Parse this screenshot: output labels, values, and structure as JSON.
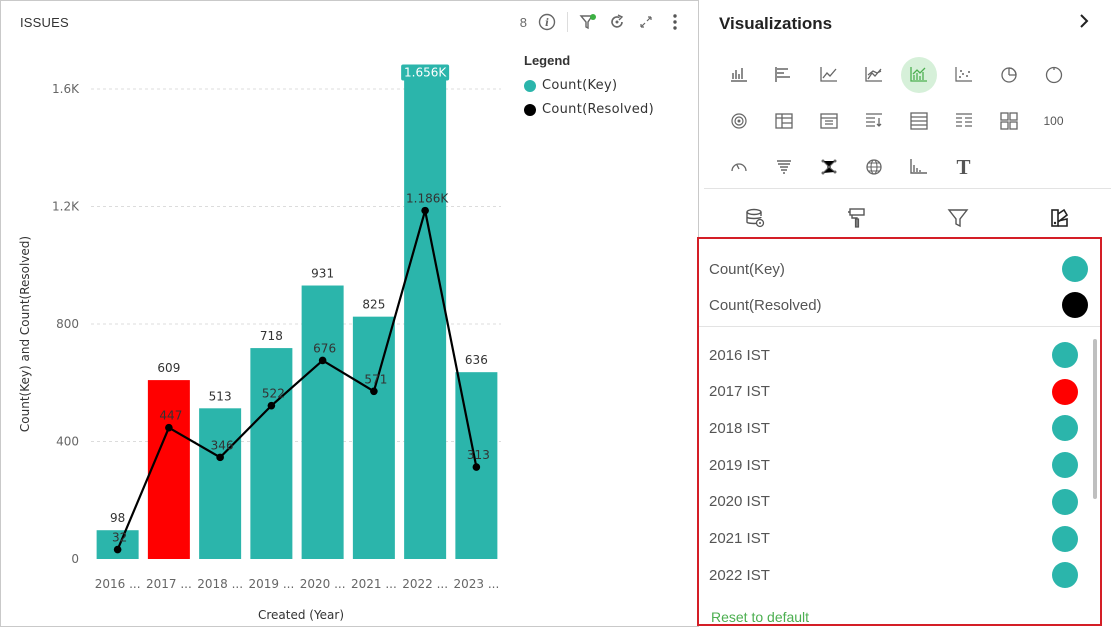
{
  "chart_panel": {
    "title": "ISSUES",
    "toolbar_count": "8",
    "legend": {
      "title": "Legend",
      "items": [
        {
          "label": "Count(Key)",
          "color": "#2bb5ab"
        },
        {
          "label": "Count(Resolved)",
          "color": "#000000"
        }
      ]
    }
  },
  "chart_data": {
    "type": "bar",
    "categories": [
      "2016 ...",
      "2017 ...",
      "2018 ...",
      "2019 ...",
      "2020 ...",
      "2021 ...",
      "2022 ...",
      "2023 ..."
    ],
    "series": [
      {
        "name": "Count(Key)",
        "type": "bar",
        "color": "#2bb5ab",
        "values": [
          98,
          609,
          513,
          718,
          931,
          825,
          1656,
          636
        ],
        "labels": [
          "98",
          "609",
          "513",
          "718",
          "931",
          "825",
          "1.656K",
          "636"
        ]
      },
      {
        "name": "Count(Resolved)",
        "type": "line",
        "color": "#000000",
        "values": [
          32,
          447,
          346,
          522,
          676,
          571,
          1186,
          313
        ],
        "labels": [
          "32",
          "447",
          "346",
          "522",
          "676",
          "571",
          "1.186K",
          "313"
        ]
      }
    ],
    "bar_colors": [
      "#2bb5ab",
      "#ff0000",
      "#2bb5ab",
      "#2bb5ab",
      "#2bb5ab",
      "#2bb5ab",
      "#2bb5ab",
      "#2bb5ab"
    ],
    "highlight_label_index": 6,
    "yticks": [
      {
        "value": 0,
        "label": "0"
      },
      {
        "value": 400,
        "label": "400"
      },
      {
        "value": 800,
        "label": "800"
      },
      {
        "value": 1200,
        "label": "1.2K"
      },
      {
        "value": 1600,
        "label": "1.6K"
      }
    ],
    "ylim": [
      0,
      1600
    ],
    "xlabel": "Created (Year)",
    "ylabel": "Count(Key) and Count(Resolved)",
    "grid": true
  },
  "viz_panel": {
    "title": "Visualizations",
    "chart_type_icons": [
      [
        "column-chart-icon",
        "bar-chart-icon",
        "line-chart-icon",
        "area-chart-icon",
        "combo-chart-icon",
        "scatter-chart-icon",
        "pie-chart-icon",
        "donut-chart-icon"
      ],
      [
        "radial-chart-icon",
        "pivot-table-icon",
        "table-icon",
        "sorted-table-icon",
        "grid-table-icon",
        "detail-table-icon",
        "tiles-icon",
        "kpi-number-icon"
      ],
      [
        "gauge-icon",
        "funnel-icon",
        "network-icon",
        "globe-map-icon",
        "histogram-icon",
        "text-icon"
      ]
    ],
    "kpi_text": "100",
    "text_icon_glyph": "T",
    "active_chart_type": "combo-chart-icon",
    "sub_tabs": [
      "data-icon",
      "format-icon",
      "filter-icon",
      "colors-icon"
    ],
    "active_sub_tab": 3,
    "series_colors": [
      {
        "label": "Count(Key)",
        "color": "#2bb5ab"
      },
      {
        "label": "Count(Resolved)",
        "color": "#000000"
      }
    ],
    "category_colors": [
      {
        "label": "2016 IST",
        "color": "#2bb5ab"
      },
      {
        "label": "2017 IST",
        "color": "#ff0000"
      },
      {
        "label": "2018 IST",
        "color": "#2bb5ab"
      },
      {
        "label": "2019 IST",
        "color": "#2bb5ab"
      },
      {
        "label": "2020 IST",
        "color": "#2bb5ab"
      },
      {
        "label": "2021 IST",
        "color": "#2bb5ab"
      },
      {
        "label": "2022 IST",
        "color": "#2bb5ab"
      }
    ],
    "reset_label": "Reset to default"
  }
}
